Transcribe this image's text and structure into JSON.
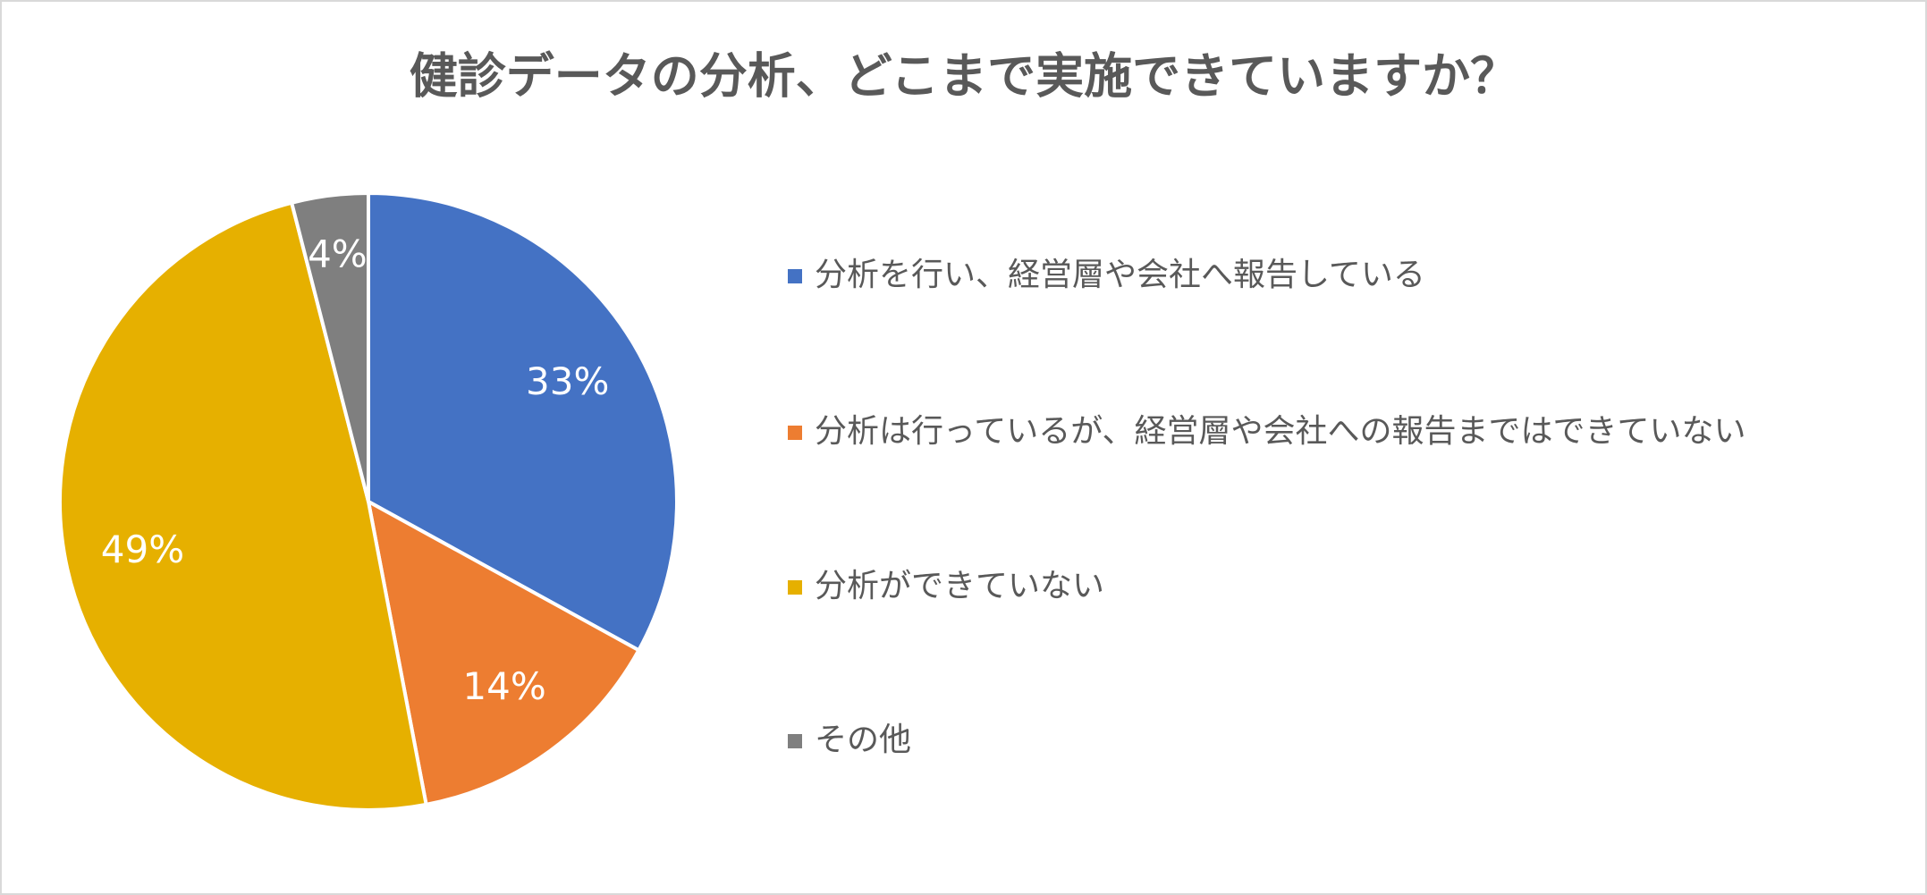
{
  "chart_data": {
    "type": "pie",
    "title": "健診データの分析、どこまで実施できていますか？",
    "categories": [
      "分析を行い、経営層や会社へ報告している",
      "分析は行っているが、経営層や会社への報告まではできていない",
      "分析ができていない",
      "その他"
    ],
    "values": [
      33,
      14,
      49,
      4
    ],
    "value_labels": [
      "33%",
      "14%",
      "49%",
      "4%"
    ],
    "colors": [
      "#4472c4",
      "#ed7d31",
      "#e6b000",
      "#7f7f7f"
    ],
    "legend": "right"
  }
}
